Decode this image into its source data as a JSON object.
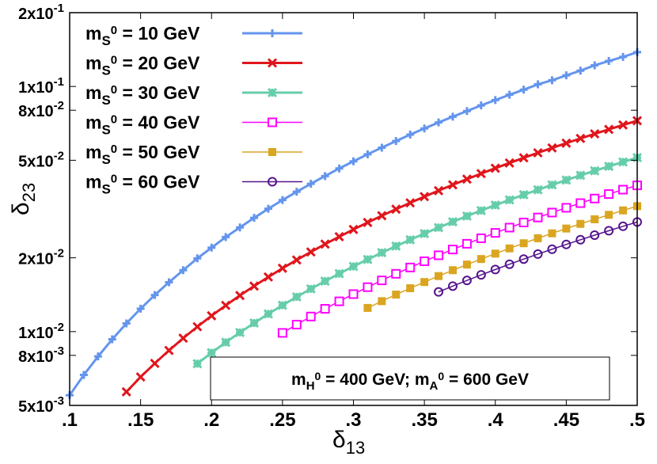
{
  "chart_data": {
    "type": "line",
    "xlabel": "δ",
    "xlabel_sub": "13",
    "ylabel": "δ",
    "ylabel_sub": "23",
    "xlim": [
      0.1,
      0.5
    ],
    "ylim": [
      0.005,
      0.2
    ],
    "y_scale": "log",
    "grid": false,
    "legend_position": "top-left",
    "x_ticks": [
      {
        "value": 0.1,
        "label": ".1"
      },
      {
        "value": 0.15,
        "label": ".15"
      },
      {
        "value": 0.2,
        "label": ".2"
      },
      {
        "value": 0.25,
        "label": ".25"
      },
      {
        "value": 0.3,
        "label": ".3"
      },
      {
        "value": 0.35,
        "label": ".35"
      },
      {
        "value": 0.4,
        "label": ".4"
      },
      {
        "value": 0.45,
        "label": ".45"
      },
      {
        "value": 0.5,
        "label": ".5"
      }
    ],
    "y_ticks": [
      {
        "value": 0.005,
        "mant": "5x10",
        "exp": "-3"
      },
      {
        "value": 0.008,
        "mant": "8x10",
        "exp": "-3"
      },
      {
        "value": 0.01,
        "mant": "1x10",
        "exp": "-2"
      },
      {
        "value": 0.02,
        "mant": "2x10",
        "exp": "-2"
      },
      {
        "value": 0.05,
        "mant": "5x10",
        "exp": "-2"
      },
      {
        "value": 0.08,
        "mant": "8x10",
        "exp": "-2"
      },
      {
        "value": 0.1,
        "mant": "1x10",
        "exp": "-1"
      },
      {
        "value": 0.2,
        "mant": "2x10",
        "exp": "-1"
      }
    ],
    "annotation": {
      "p1": "m",
      "s1": "H",
      "sup1": "0",
      "p2": " = 400 GeV; m",
      "s2": "A",
      "sup2": "0",
      "p3": " = 600 GeV"
    },
    "series": [
      {
        "name_m": "m",
        "name_sub": "S",
        "name_sup": "0",
        "name_rest": " = 10 GeV",
        "color": "#6495ed",
        "marker": "plus",
        "width": 3,
        "x": [
          0.1,
          0.11,
          0.12,
          0.13,
          0.14,
          0.15,
          0.16,
          0.17,
          0.18,
          0.19,
          0.2,
          0.21,
          0.22,
          0.23,
          0.24,
          0.25,
          0.26,
          0.27,
          0.28,
          0.29,
          0.3,
          0.31,
          0.32,
          0.33,
          0.34,
          0.35,
          0.36,
          0.37,
          0.38,
          0.39,
          0.4,
          0.41,
          0.42,
          0.43,
          0.44,
          0.45,
          0.46,
          0.47,
          0.48,
          0.49,
          0.5
        ],
        "y": [
          0.0055,
          0.00666,
          0.00792,
          0.0093,
          0.0108,
          0.0124,
          0.0141,
          0.0159,
          0.0178,
          0.0199,
          0.022,
          0.0243,
          0.0266,
          0.0291,
          0.0317,
          0.0344,
          0.0372,
          0.0401,
          0.0431,
          0.0463,
          0.0495,
          0.0529,
          0.0563,
          0.0599,
          0.0636,
          0.0674,
          0.0713,
          0.0753,
          0.0794,
          0.0837,
          0.088,
          0.0925,
          0.097,
          0.102,
          0.106,
          0.111,
          0.116,
          0.122,
          0.127,
          0.132,
          0.138
        ]
      },
      {
        "name_m": "m",
        "name_sub": "S",
        "name_sup": "0",
        "name_rest": " = 20 GeV",
        "color": "#e0161c",
        "marker": "cross",
        "width": 3,
        "x": [
          0.14,
          0.15,
          0.16,
          0.17,
          0.18,
          0.19,
          0.2,
          0.21,
          0.22,
          0.23,
          0.24,
          0.25,
          0.26,
          0.27,
          0.28,
          0.29,
          0.3,
          0.31,
          0.32,
          0.33,
          0.34,
          0.35,
          0.36,
          0.37,
          0.38,
          0.39,
          0.4,
          0.41,
          0.42,
          0.43,
          0.44,
          0.45,
          0.46,
          0.47,
          0.48,
          0.49,
          0.5
        ],
        "y": [
          0.00568,
          0.00653,
          0.00742,
          0.00838,
          0.0094,
          0.01047,
          0.0116,
          0.01279,
          0.01404,
          0.01534,
          0.0167,
          0.01813,
          0.0196,
          0.02114,
          0.02274,
          0.02439,
          0.0261,
          0.02787,
          0.0297,
          0.03158,
          0.03352,
          0.03553,
          0.03758,
          0.0397,
          0.04188,
          0.04411,
          0.0464,
          0.04875,
          0.05116,
          0.05362,
          0.05614,
          0.05873,
          0.06136,
          0.06406,
          0.06682,
          0.06963,
          0.0725
        ]
      },
      {
        "name_m": "m",
        "name_sub": "S",
        "name_sup": "0",
        "name_rest": " = 30 GeV",
        "color": "#66cdaa",
        "marker": "star",
        "width": 3,
        "x": [
          0.19,
          0.2,
          0.21,
          0.22,
          0.23,
          0.24,
          0.25,
          0.26,
          0.27,
          0.28,
          0.29,
          0.3,
          0.31,
          0.32,
          0.33,
          0.34,
          0.35,
          0.36,
          0.37,
          0.38,
          0.39,
          0.4,
          0.41,
          0.42,
          0.43,
          0.44,
          0.45,
          0.46,
          0.47,
          0.48,
          0.49,
          0.5
        ],
        "y": [
          0.0074,
          0.0082,
          0.00904,
          0.00992,
          0.01084,
          0.01181,
          0.01281,
          0.01386,
          0.01494,
          0.01607,
          0.01724,
          0.01845,
          0.0197,
          0.02099,
          0.02232,
          0.0237,
          0.02511,
          0.02657,
          0.02806,
          0.0296,
          0.03118,
          0.0328,
          0.03446,
          0.03616,
          0.0379,
          0.03969,
          0.04151,
          0.04338,
          0.04528,
          0.04723,
          0.04922,
          0.05125
        ]
      },
      {
        "name_m": "m",
        "name_sub": "S",
        "name_sup": "0",
        "name_rest": " = 40 GeV",
        "color": "#ff00ff",
        "marker": "open-square",
        "width": 1.5,
        "x": [
          0.25,
          0.26,
          0.27,
          0.28,
          0.29,
          0.3,
          0.31,
          0.32,
          0.33,
          0.34,
          0.35,
          0.36,
          0.37,
          0.38,
          0.39,
          0.4,
          0.41,
          0.42,
          0.43,
          0.44,
          0.45,
          0.46,
          0.47,
          0.48,
          0.49,
          0.5
        ],
        "y": [
          0.00988,
          0.01068,
          0.01152,
          0.01239,
          0.01329,
          0.01422,
          0.01518,
          0.01618,
          0.01721,
          0.01826,
          0.01936,
          0.02048,
          0.02163,
          0.02282,
          0.02403,
          0.02528,
          0.02656,
          0.02787,
          0.02921,
          0.03059,
          0.032,
          0.03343,
          0.0349,
          0.0364,
          0.03794,
          0.0395
        ]
      },
      {
        "name_m": "m",
        "name_sub": "S",
        "name_sup": "0",
        "name_rest": " = 50 GeV",
        "color": "#daa520",
        "marker": "filled-square",
        "width": 1.5,
        "x": [
          0.31,
          0.32,
          0.33,
          0.34,
          0.35,
          0.36,
          0.37,
          0.38,
          0.39,
          0.4,
          0.41,
          0.42,
          0.43,
          0.44,
          0.45,
          0.46,
          0.47,
          0.48,
          0.49,
          0.5
        ],
        "y": [
          0.01249,
          0.01331,
          0.01416,
          0.01503,
          0.01593,
          0.01685,
          0.0178,
          0.01877,
          0.01977,
          0.0208,
          0.02185,
          0.02293,
          0.02404,
          0.02517,
          0.02633,
          0.02751,
          0.02872,
          0.02995,
          0.03121,
          0.0325
        ]
      },
      {
        "name_m": "m",
        "name_sub": "S",
        "name_sup": "0",
        "name_rest": " = 60 GeV",
        "color": "#54148c",
        "marker": "open-circle",
        "width": 1.5,
        "x": [
          0.36,
          0.37,
          0.38,
          0.39,
          0.4,
          0.41,
          0.42,
          0.43,
          0.44,
          0.45,
          0.46,
          0.47,
          0.48,
          0.49,
          0.5
        ],
        "y": [
          0.01452,
          0.01533,
          0.01617,
          0.01704,
          0.01792,
          0.01883,
          0.01976,
          0.02071,
          0.02168,
          0.02268,
          0.0237,
          0.02474,
          0.0258,
          0.02689,
          0.028
        ]
      }
    ]
  }
}
